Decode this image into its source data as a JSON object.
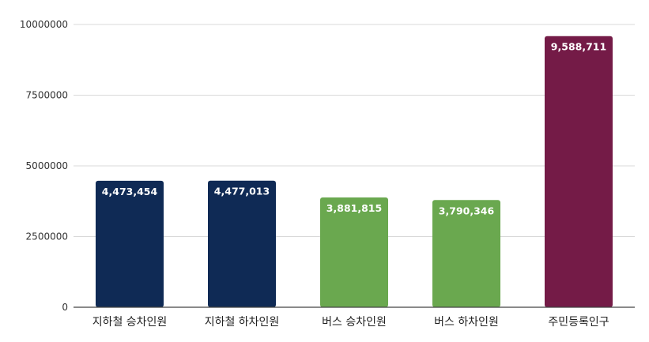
{
  "chart_data": {
    "type": "bar",
    "categories": [
      "지하철 승차인원",
      "지하철 하차인원",
      "버스 승차인원",
      "버스 하차인원",
      "주민등록인구"
    ],
    "values": [
      4473454,
      4477013,
      3881815,
      3790346,
      9588711
    ],
    "data_labels": [
      "4,473,454",
      "4,477,013",
      "3,881,815",
      "3,790,346",
      "9,588,711"
    ],
    "bar_colors": [
      "#0f2a55",
      "#0f2a55",
      "#6aa84f",
      "#6aa84f",
      "#741b47"
    ],
    "yticks": [
      0,
      2500000,
      5000000,
      7500000,
      10000000
    ],
    "ytick_labels": [
      "0",
      "2500000",
      "5000000",
      "7500000",
      "10000000"
    ],
    "ylim": [
      0,
      10000000
    ],
    "grid": true,
    "legend": "none",
    "title": "",
    "xlabel": "",
    "ylabel": ""
  }
}
